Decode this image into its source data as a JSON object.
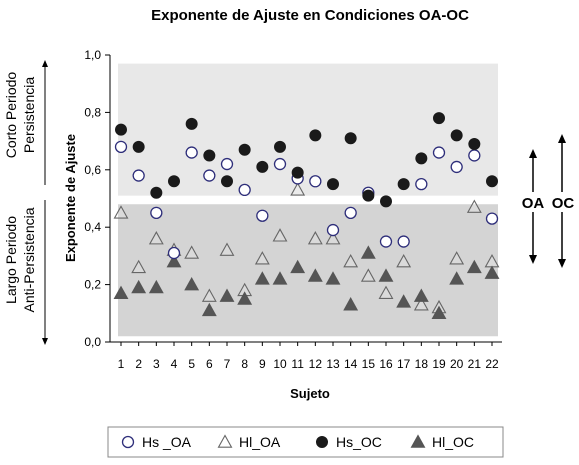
{
  "chart_data": {
    "type": "scatter",
    "title": "Exponente de Ajuste en Condiciones OA-OC",
    "xlabel": "Sujeto",
    "ylabel": "Exponente de Ajuste",
    "x": [
      1,
      2,
      3,
      4,
      5,
      6,
      7,
      8,
      9,
      10,
      11,
      12,
      13,
      14,
      15,
      16,
      17,
      18,
      19,
      20,
      21,
      22
    ],
    "ylim": [
      0,
      1
    ],
    "yticks": [
      "0,0",
      "0,2",
      "0,4",
      "0,6",
      "0,8",
      "1,0"
    ],
    "grid": false,
    "legend_position": "bottom",
    "bands": [
      {
        "name": "upper",
        "from": 0.51,
        "to": 0.97,
        "color": "#e8e8e8"
      },
      {
        "name": "lower",
        "from": 0.02,
        "to": 0.48,
        "color": "#d4d4d4"
      }
    ],
    "series": [
      {
        "name": "Hs _OA",
        "marker": "circle-open",
        "values": [
          0.68,
          0.58,
          0.45,
          0.31,
          0.66,
          0.58,
          0.62,
          0.53,
          0.44,
          0.62,
          0.57,
          0.56,
          0.39,
          0.45,
          0.52,
          0.35,
          0.35,
          0.55,
          0.66,
          0.61,
          0.65,
          0.43
        ]
      },
      {
        "name": "Hl_OA",
        "marker": "triangle-open",
        "values": [
          0.45,
          0.26,
          0.36,
          0.32,
          0.31,
          0.16,
          0.32,
          0.18,
          0.29,
          0.37,
          0.53,
          0.36,
          0.36,
          0.28,
          0.23,
          0.17,
          0.28,
          0.13,
          0.12,
          0.29,
          0.47,
          0.28
        ]
      },
      {
        "name": "Hs_OC",
        "marker": "circle-filled",
        "values": [
          0.74,
          0.68,
          0.52,
          0.56,
          0.76,
          0.65,
          0.56,
          0.67,
          0.61,
          0.68,
          0.59,
          0.72,
          0.55,
          0.71,
          0.51,
          0.49,
          0.55,
          0.64,
          0.78,
          0.72,
          0.69,
          0.56
        ]
      },
      {
        "name": "Hl_OC",
        "marker": "triangle-filled",
        "values": [
          0.17,
          0.19,
          0.19,
          0.28,
          0.2,
          0.11,
          0.16,
          0.15,
          0.22,
          0.22,
          0.26,
          0.23,
          0.22,
          0.13,
          0.31,
          0.23,
          0.14,
          0.16,
          0.1,
          0.22,
          0.26,
          0.24
        ]
      }
    ]
  },
  "side_labels": {
    "top": [
      "Corto Periodo",
      "Persistencia"
    ],
    "bottom": [
      "Largo Periodo",
      "Anti-Persistencia"
    ]
  },
  "bracket_labels": {
    "oa": "OA",
    "oc": "OC"
  },
  "colors": {
    "open_marker": "#2e2e7a",
    "filled_marker": "#1a1a1a",
    "triangle_open": "#555555",
    "triangle_filled": "#555555"
  }
}
